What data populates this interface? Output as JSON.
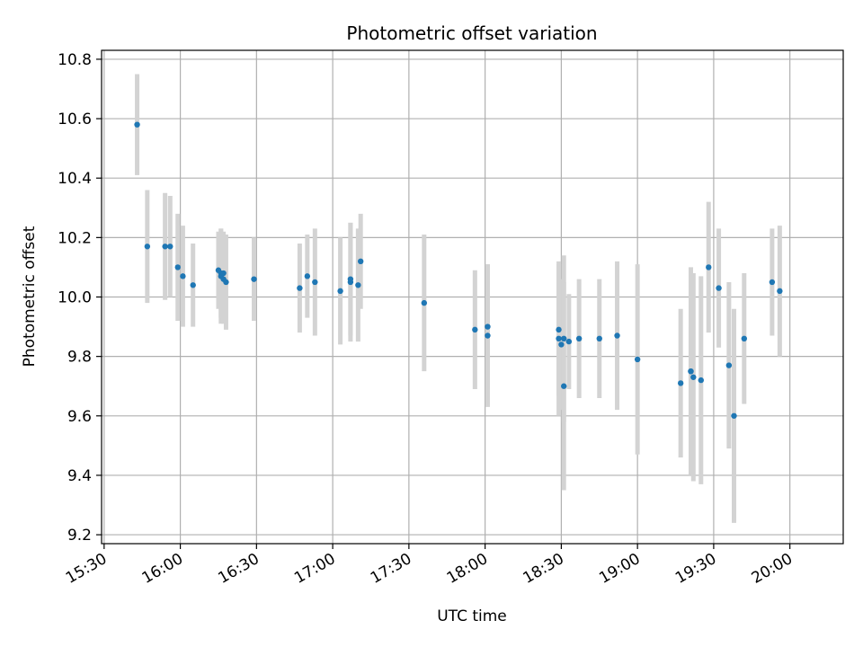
{
  "chart_data": {
    "type": "scatter",
    "title": "Photometric offset variation",
    "xlabel": "UTC time",
    "ylabel": "Photometric offset",
    "x_tick_labels": [
      "15:30",
      "16:00",
      "16:30",
      "17:00",
      "17:30",
      "18:00",
      "18:30",
      "19:00",
      "19:30",
      "20:00"
    ],
    "y_tick_labels": [
      "9.2",
      "9.4",
      "9.6",
      "9.8",
      "10.0",
      "10.2",
      "10.4",
      "10.6",
      "10.8"
    ],
    "y_ticks": [
      9.2,
      9.4,
      9.6,
      9.8,
      10.0,
      10.2,
      10.4,
      10.6,
      10.8
    ],
    "xlim": [
      "15:29",
      "20:21"
    ],
    "ylim": [
      9.17,
      10.83
    ],
    "grid": true,
    "colors": {
      "point": "#1f77b4",
      "errorbar": "#d3d3d3",
      "grid": "#b0b0b0"
    },
    "series": [
      {
        "x": [
          "15:43",
          "15:47",
          "15:54",
          "15:56",
          "15:59",
          "16:01",
          "16:05",
          "16:15",
          "16:16",
          "16:16",
          "16:17",
          "16:17",
          "16:18",
          "16:29",
          "16:47",
          "16:50",
          "16:53",
          "17:03",
          "17:07",
          "17:07",
          "17:10",
          "17:11",
          "17:36",
          "17:56",
          "18:01",
          "18:01",
          "18:29",
          "18:29",
          "18:30",
          "18:31",
          "18:31",
          "18:33",
          "18:37",
          "18:45",
          "18:52",
          "19:00",
          "19:17",
          "19:21",
          "19:21",
          "19:22",
          "19:25",
          "19:28",
          "19:32",
          "19:36",
          "19:38",
          "19:42",
          "19:53",
          "19:56"
        ],
        "y": [
          10.58,
          10.17,
          10.17,
          10.17,
          10.1,
          10.07,
          10.04,
          10.09,
          10.08,
          10.07,
          10.06,
          10.08,
          10.05,
          10.06,
          10.03,
          10.07,
          10.05,
          10.02,
          10.05,
          10.06,
          10.04,
          10.12,
          9.98,
          9.89,
          9.9,
          9.87,
          9.86,
          9.89,
          9.84,
          9.86,
          9.7,
          9.85,
          9.86,
          9.86,
          9.87,
          9.79,
          9.71,
          9.75,
          9.75,
          9.73,
          9.72,
          10.1,
          10.03,
          9.77,
          9.6,
          9.86,
          10.05,
          10.02
        ],
        "err": [
          0.17,
          0.19,
          0.18,
          0.17,
          0.18,
          0.17,
          0.14,
          0.13,
          0.15,
          0.16,
          0.15,
          0.14,
          0.16,
          0.14,
          0.15,
          0.14,
          0.18,
          0.18,
          0.2,
          0.19,
          0.19,
          0.16,
          0.23,
          0.2,
          0.21,
          0.24,
          0.26,
          0.22,
          0.22,
          0.28,
          0.35,
          0.16,
          0.2,
          0.2,
          0.25,
          0.32,
          0.25,
          0.15,
          0.35,
          0.35,
          0.35,
          0.22,
          0.2,
          0.28,
          0.36,
          0.22,
          0.18,
          0.22
        ]
      }
    ]
  }
}
